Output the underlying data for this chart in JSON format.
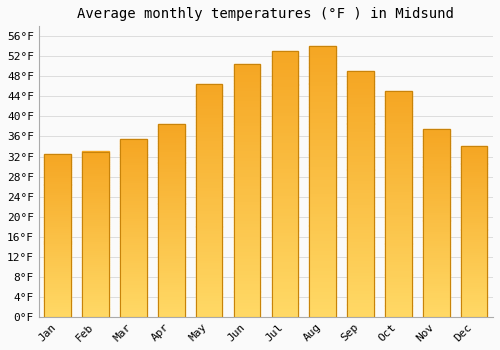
{
  "months": [
    "Jan",
    "Feb",
    "Mar",
    "Apr",
    "May",
    "Jun",
    "Jul",
    "Aug",
    "Sep",
    "Oct",
    "Nov",
    "Dec"
  ],
  "values": [
    32.5,
    33.0,
    35.5,
    38.5,
    46.5,
    50.5,
    53.0,
    54.0,
    49.0,
    45.0,
    37.5,
    34.0
  ],
  "title": "Average monthly temperatures (°F ) in Midsund",
  "ylim": [
    0,
    58
  ],
  "yticks": [
    0,
    4,
    8,
    12,
    16,
    20,
    24,
    28,
    32,
    36,
    40,
    44,
    48,
    52,
    56
  ],
  "bar_color_top": "#F5A623",
  "bar_color_bottom": "#FFD966",
  "bar_edge_color": "#C8830A",
  "background_color": "#FAFAFA",
  "plot_bg_color": "#FAFAFA",
  "grid_color": "#DDDDDD",
  "title_fontsize": 10,
  "tick_fontsize": 8,
  "bar_width": 0.7,
  "n_grad": 80
}
